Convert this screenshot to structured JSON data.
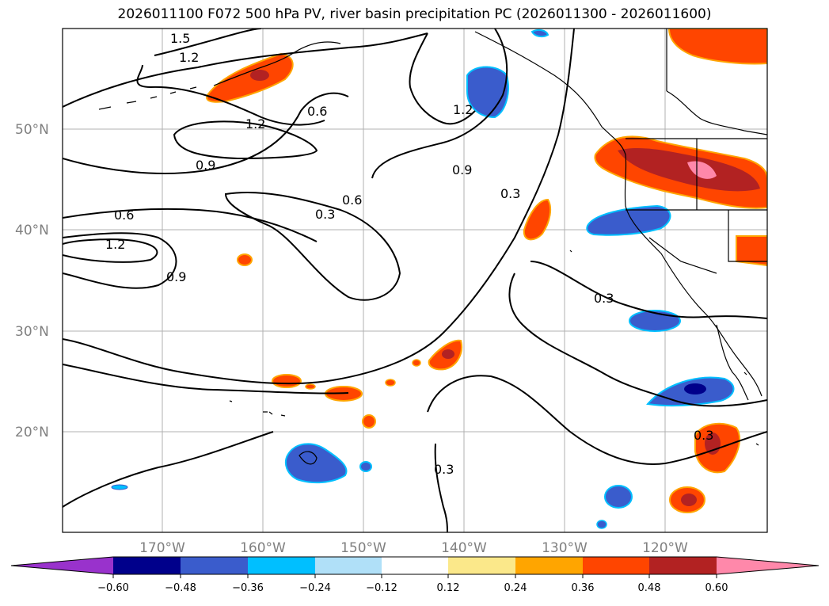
{
  "title": "2026011100 F072 500 hPa PV, river basin precipitation PC (2026011300 - 2026011600)",
  "map": {
    "lat_labels": [
      "50°N",
      "40°N",
      "30°N",
      "20°N"
    ],
    "lon_labels": [
      "170°W",
      "160°W",
      "150°W",
      "140°W",
      "130°W",
      "120°W"
    ],
    "contour_labels": [
      "1.5",
      "1.2",
      "0.6",
      "1.2",
      "0.9",
      "1.2",
      "0.6",
      "1.2",
      "0.9",
      "0.6",
      "0.3",
      "0.9",
      "0.3",
      "0.3",
      "0.3",
      "0.3"
    ]
  },
  "colorbar": {
    "ticks": [
      "−0.60",
      "−0.48",
      "−0.36",
      "−0.24",
      "−0.12",
      "0.12",
      "0.24",
      "0.36",
      "0.48",
      "0.60"
    ],
    "colors": [
      "#9932cc",
      "#00008b",
      "#3a5ccc",
      "#00bfff",
      "#b0e0f8",
      "#ffffff",
      "#fbe88a",
      "#ffa500",
      "#ff4500",
      "#b22222",
      "#ff88aa",
      "#ff88aa"
    ]
  }
}
